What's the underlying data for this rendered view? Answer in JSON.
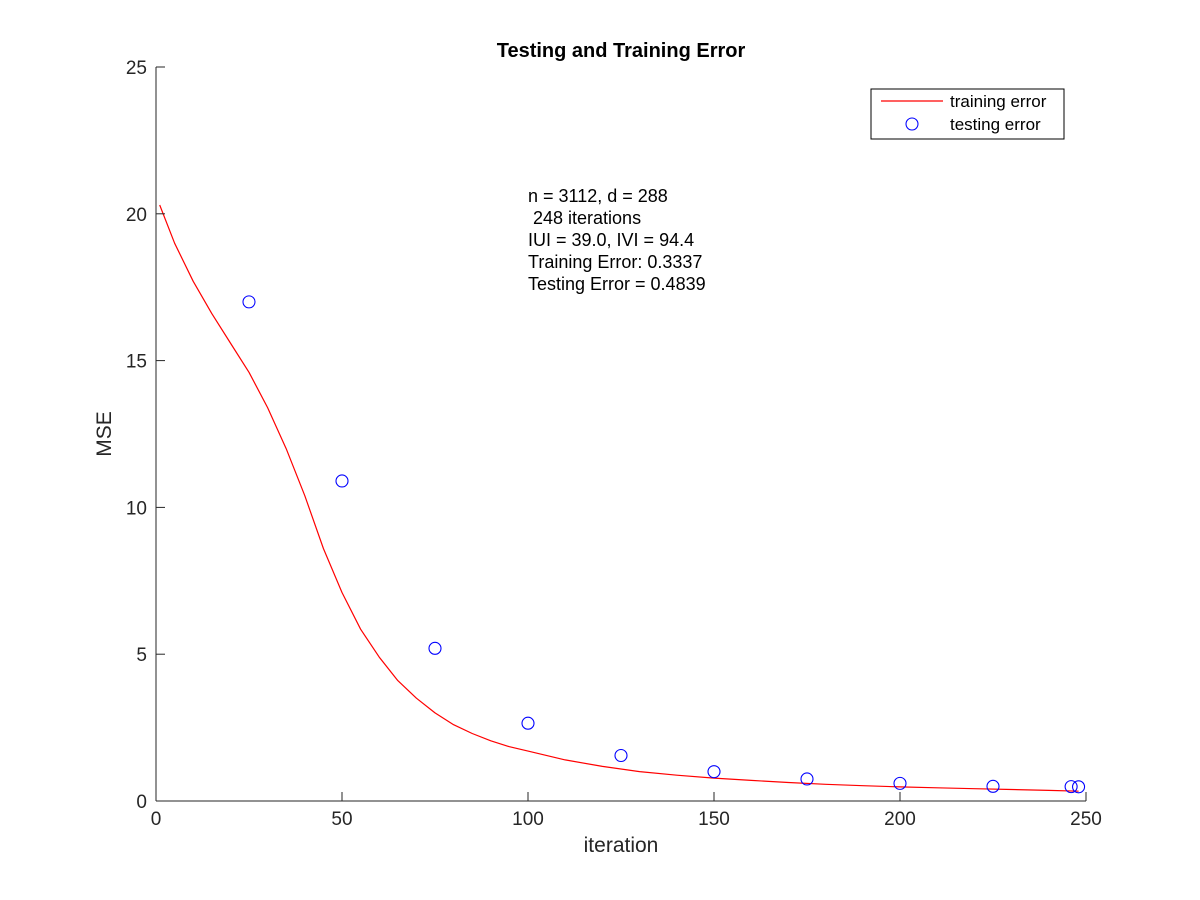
{
  "chart_data": {
    "type": "line",
    "title": "Testing and Training Error",
    "xlabel": "iteration",
    "ylabel": "MSE",
    "xlim": [
      0,
      250
    ],
    "ylim": [
      0,
      25
    ],
    "xticks": [
      0,
      50,
      100,
      150,
      200,
      250
    ],
    "yticks": [
      0,
      5,
      10,
      15,
      20,
      25
    ],
    "grid": false,
    "legend_position": "top-right",
    "series": [
      {
        "name": "training error",
        "style": "line",
        "color": "#ff0000",
        "x": [
          1,
          5,
          10,
          15,
          20,
          25,
          30,
          35,
          40,
          45,
          50,
          55,
          60,
          65,
          70,
          75,
          80,
          85,
          90,
          95,
          100,
          110,
          120,
          130,
          140,
          150,
          160,
          170,
          180,
          190,
          200,
          210,
          220,
          230,
          240,
          248
        ],
        "y": [
          20.3,
          19.0,
          17.7,
          16.6,
          15.6,
          14.6,
          13.4,
          12.0,
          10.4,
          8.6,
          7.1,
          5.85,
          4.9,
          4.1,
          3.5,
          3.0,
          2.6,
          2.3,
          2.05,
          1.85,
          1.7,
          1.4,
          1.18,
          1.0,
          0.88,
          0.78,
          0.7,
          0.63,
          0.57,
          0.52,
          0.48,
          0.45,
          0.42,
          0.39,
          0.36,
          0.3337
        ]
      },
      {
        "name": "testing error",
        "style": "markers",
        "marker": "circle",
        "color": "#0000ff",
        "x": [
          25,
          50,
          75,
          100,
          125,
          150,
          175,
          200,
          225,
          246,
          248
        ],
        "y": [
          17.0,
          10.9,
          5.2,
          2.65,
          1.55,
          1.0,
          0.75,
          0.6,
          0.5,
          0.49,
          0.4839
        ]
      }
    ],
    "annotation": [
      "n = 3112, d = 288",
      " 248 iterations",
      "IUI = 39.0, IVI = 94.4",
      "Training Error: 0.3337",
      "Testing Error = 0.4839"
    ]
  }
}
